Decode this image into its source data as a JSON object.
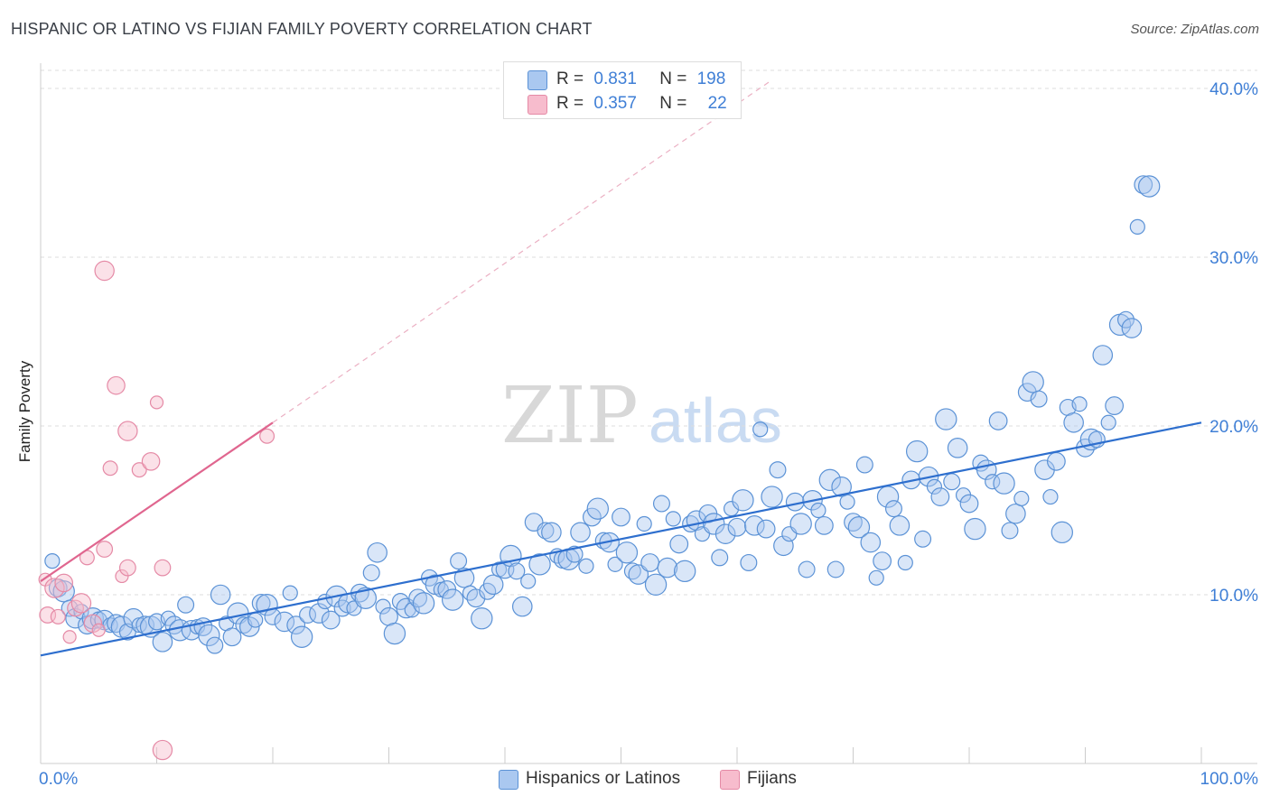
{
  "title": "HISPANIC OR LATINO VS FIJIAN FAMILY POVERTY CORRELATION CHART",
  "source": "Source: ZipAtlas.com",
  "watermark": {
    "zip": "ZIP",
    "atlas": "atlas"
  },
  "legend": {
    "series1": {
      "r_label": "R =",
      "r_value": "0.831",
      "n_label": "N =",
      "n_value": "198"
    },
    "series2": {
      "r_label": "R =",
      "r_value": "0.357",
      "n_label": "N =",
      "n_value": "22"
    }
  },
  "colors": {
    "blue_fill": "#aac8f0",
    "blue_stroke": "#5b92d6",
    "blue_line": "#2e6fce",
    "pink_fill": "#f7bccd",
    "pink_stroke": "#e58aa6",
    "pink_line": "#e0668f",
    "tick_text": "#3f7fd6",
    "grid": "#dddddd"
  },
  "chart_data": {
    "type": "scatter",
    "xlabel": "",
    "ylabel": "Family Poverty",
    "xlim": [
      0,
      100
    ],
    "ylim": [
      0,
      41.5
    ],
    "x_tick_labels": [
      "0.0%",
      "100.0%"
    ],
    "y_ticks": [
      10,
      20,
      30,
      40
    ],
    "y_tick_labels": [
      "10.0%",
      "20.0%",
      "30.0%",
      "40.0%"
    ],
    "grid": true,
    "series": [
      {
        "name": "Hispanics or Latinos",
        "color": "#5b92d6",
        "trend": {
          "x": [
            0,
            100
          ],
          "y": [
            6.4,
            20.2
          ]
        },
        "points": [
          [
            1,
            12
          ],
          [
            1.5,
            10.4
          ],
          [
            2,
            10.2
          ],
          [
            2.5,
            9.2
          ],
          [
            3,
            8.6
          ],
          [
            3.5,
            9
          ],
          [
            4,
            8.2
          ],
          [
            4.5,
            8.6
          ],
          [
            5,
            8.5
          ],
          [
            5.5,
            8.5
          ],
          [
            6,
            8.2
          ],
          [
            6.5,
            8.3
          ],
          [
            7,
            8.1
          ],
          [
            7.5,
            7.8
          ],
          [
            8,
            8.6
          ],
          [
            8.5,
            8.2
          ],
          [
            9,
            8.2
          ],
          [
            9.5,
            8.1
          ],
          [
            10,
            8.4
          ],
          [
            10.5,
            7.2
          ],
          [
            11,
            8.6
          ],
          [
            11.5,
            8.2
          ],
          [
            12,
            7.9
          ],
          [
            12.5,
            9.4
          ],
          [
            13,
            7.9
          ],
          [
            13.5,
            8.1
          ],
          [
            14,
            8.1
          ],
          [
            14.5,
            7.6
          ],
          [
            15,
            7
          ],
          [
            15.5,
            10
          ],
          [
            16,
            8.3
          ],
          [
            16.5,
            7.5
          ],
          [
            17,
            8.9
          ],
          [
            17.5,
            8.2
          ],
          [
            18,
            8.1
          ],
          [
            18.5,
            8.5
          ],
          [
            19,
            9.5
          ],
          [
            19.5,
            9.4
          ],
          [
            20,
            8.7
          ],
          [
            21,
            8.4
          ],
          [
            21.5,
            10.1
          ],
          [
            22,
            8.2
          ],
          [
            22.5,
            7.5
          ],
          [
            23,
            8.8
          ],
          [
            24,
            8.9
          ],
          [
            24.5,
            9.6
          ],
          [
            25,
            8.5
          ],
          [
            25.5,
            9.9
          ],
          [
            26,
            9.2
          ],
          [
            26.5,
            9.5
          ],
          [
            27,
            9.2
          ],
          [
            27.5,
            10.1
          ],
          [
            28,
            9.8
          ],
          [
            28.5,
            11.3
          ],
          [
            29,
            12.5
          ],
          [
            29.5,
            9.3
          ],
          [
            30,
            8.7
          ],
          [
            30.5,
            7.7
          ],
          [
            31,
            9.6
          ],
          [
            31.5,
            9.2
          ],
          [
            32,
            9.1
          ],
          [
            32.5,
            9.8
          ],
          [
            33,
            9.5
          ],
          [
            33.5,
            11
          ],
          [
            34,
            10.6
          ],
          [
            34.5,
            10.3
          ],
          [
            35,
            10.3
          ],
          [
            35.5,
            9.7
          ],
          [
            36,
            12
          ],
          [
            36.5,
            11
          ],
          [
            37,
            10.1
          ],
          [
            37.5,
            9.8
          ],
          [
            38,
            8.6
          ],
          [
            38.5,
            10.2
          ],
          [
            39,
            10.6
          ],
          [
            39.5,
            11.5
          ],
          [
            40,
            11.5
          ],
          [
            40.5,
            12.3
          ],
          [
            41,
            11.4
          ],
          [
            41.5,
            9.3
          ],
          [
            42,
            10.8
          ],
          [
            42.5,
            14.3
          ],
          [
            43,
            11.8
          ],
          [
            43.5,
            13.8
          ],
          [
            44,
            13.7
          ],
          [
            44.5,
            12.3
          ],
          [
            45,
            12.1
          ],
          [
            45.5,
            12.1
          ],
          [
            46,
            12.4
          ],
          [
            46.5,
            13.7
          ],
          [
            47,
            11.7
          ],
          [
            47.5,
            14.6
          ],
          [
            48,
            15.1
          ],
          [
            48.5,
            13.2
          ],
          [
            49,
            13.1
          ],
          [
            49.5,
            11.8
          ],
          [
            50,
            14.6
          ],
          [
            50.5,
            12.5
          ],
          [
            51,
            11.4
          ],
          [
            51.5,
            11.2
          ],
          [
            52,
            14.2
          ],
          [
            52.5,
            11.9
          ],
          [
            53,
            10.6
          ],
          [
            53.5,
            15.4
          ],
          [
            54,
            11.6
          ],
          [
            54.5,
            14.5
          ],
          [
            55,
            13
          ],
          [
            55.5,
            11.4
          ],
          [
            56,
            14.2
          ],
          [
            56.5,
            14.4
          ],
          [
            57,
            13.6
          ],
          [
            57.5,
            14.8
          ],
          [
            58,
            14.2
          ],
          [
            58.5,
            12.2
          ],
          [
            59,
            13.6
          ],
          [
            59.5,
            15.1
          ],
          [
            60,
            14
          ],
          [
            60.5,
            15.6
          ],
          [
            61,
            11.9
          ],
          [
            61.5,
            14.1
          ],
          [
            62,
            19.8
          ],
          [
            62.5,
            13.9
          ],
          [
            63,
            15.8
          ],
          [
            63.5,
            17.4
          ],
          [
            64,
            12.9
          ],
          [
            64.5,
            13.6
          ],
          [
            65,
            15.5
          ],
          [
            65.5,
            14.2
          ],
          [
            66,
            11.5
          ],
          [
            66.5,
            15.6
          ],
          [
            67,
            15
          ],
          [
            67.5,
            14.1
          ],
          [
            68,
            16.8
          ],
          [
            68.5,
            11.5
          ],
          [
            69,
            16.4
          ],
          [
            69.5,
            15.5
          ],
          [
            70,
            14.3
          ],
          [
            70.5,
            14
          ],
          [
            71,
            17.7
          ],
          [
            71.5,
            13.1
          ],
          [
            72,
            11
          ],
          [
            72.5,
            12
          ],
          [
            73,
            15.8
          ],
          [
            73.5,
            15.1
          ],
          [
            74,
            14.1
          ],
          [
            74.5,
            11.9
          ],
          [
            75,
            16.8
          ],
          [
            75.5,
            18.5
          ],
          [
            76,
            13.3
          ],
          [
            76.5,
            17
          ],
          [
            77,
            16.4
          ],
          [
            77.5,
            15.8
          ],
          [
            78,
            20.4
          ],
          [
            78.5,
            16.7
          ],
          [
            79,
            18.7
          ],
          [
            79.5,
            15.9
          ],
          [
            80,
            15.4
          ],
          [
            80.5,
            13.9
          ],
          [
            81,
            17.8
          ],
          [
            81.5,
            17.4
          ],
          [
            82,
            16.7
          ],
          [
            82.5,
            20.3
          ],
          [
            83,
            16.6
          ],
          [
            83.5,
            13.8
          ],
          [
            84,
            14.8
          ],
          [
            84.5,
            15.7
          ],
          [
            85,
            22
          ],
          [
            85.5,
            22.6
          ],
          [
            86,
            21.6
          ],
          [
            86.5,
            17.4
          ],
          [
            87,
            15.8
          ],
          [
            87.5,
            17.9
          ],
          [
            88,
            13.7
          ],
          [
            88.5,
            21.1
          ],
          [
            89,
            20.2
          ],
          [
            89.5,
            21.3
          ],
          [
            90,
            18.7
          ],
          [
            90.5,
            19.2
          ],
          [
            91,
            19.2
          ],
          [
            91.5,
            24.2
          ],
          [
            92,
            20.2
          ],
          [
            92.5,
            21.2
          ],
          [
            93,
            26
          ],
          [
            93.5,
            26.3
          ],
          [
            94,
            25.8
          ],
          [
            94.5,
            31.8
          ],
          [
            95,
            34.3
          ],
          [
            95.5,
            34.2
          ]
        ]
      },
      {
        "name": "Fijians",
        "color": "#e58aa6",
        "trend": {
          "x": [
            0,
            20
          ],
          "y": [
            10.8,
            20.2
          ]
        },
        "trend_dashed_to": {
          "x": 63,
          "y": 40.5
        },
        "points": [
          [
            0.4,
            10.9
          ],
          [
            0.6,
            8.8
          ],
          [
            1.2,
            10.4
          ],
          [
            1.5,
            8.7
          ],
          [
            2,
            10.7
          ],
          [
            2.5,
            7.5
          ],
          [
            3,
            9.2
          ],
          [
            3.5,
            9.5
          ],
          [
            4,
            12.2
          ],
          [
            4.5,
            8.3
          ],
          [
            5,
            7.9
          ],
          [
            5.5,
            12.7
          ],
          [
            5.5,
            29.2
          ],
          [
            6,
            17.5
          ],
          [
            6.5,
            22.4
          ],
          [
            7,
            11.1
          ],
          [
            7.5,
            11.6
          ],
          [
            7.5,
            19.7
          ],
          [
            8.5,
            17.4
          ],
          [
            9.5,
            17.9
          ],
          [
            10,
            21.4
          ],
          [
            10.5,
            11.6
          ],
          [
            10.5,
            0.8
          ],
          [
            19.5,
            19.4
          ]
        ]
      }
    ]
  },
  "bottom_legend": {
    "series1": "Hispanics or Latinos",
    "series2": "Fijians"
  }
}
